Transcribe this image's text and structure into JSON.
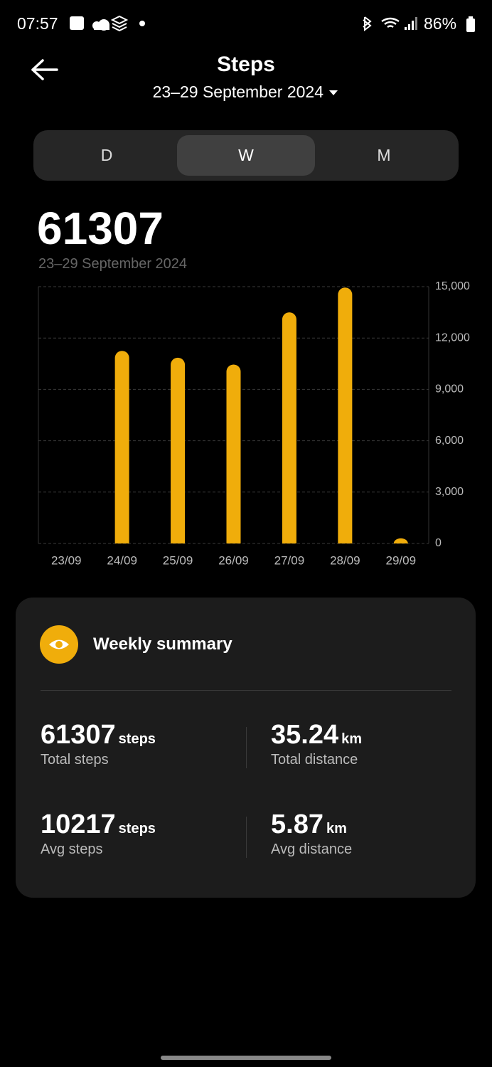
{
  "status_bar": {
    "time": "07:57",
    "battery": "86%"
  },
  "header": {
    "title": "Steps",
    "date_range": "23–29 September 2024"
  },
  "tabs": [
    "D",
    "W",
    "M"
  ],
  "total": {
    "value": "61307",
    "date_range": "23–29 September 2024"
  },
  "chart_data": {
    "type": "bar",
    "categories": [
      "23/09",
      "24/09",
      "25/09",
      "26/09",
      "27/09",
      "28/09",
      "29/09"
    ],
    "values": [
      0,
      11250,
      10850,
      10450,
      13500,
      14950,
      300
    ],
    "color": "#f0ad0b",
    "ylim": [
      0,
      15000
    ],
    "yticks": [
      0,
      {
        "value": 3000,
        "label": "3,000"
      },
      {
        "value": 6000,
        "label": "6,000"
      },
      {
        "value": 9000,
        "label": "9,000"
      },
      {
        "value": 12000,
        "label": "12,000"
      },
      {
        "value": 15000,
        "label": "15,000"
      }
    ],
    "grid": true
  },
  "summary": {
    "title": "Weekly summary",
    "stats": [
      {
        "value": "61307",
        "unit": "steps",
        "label": "Total steps"
      },
      {
        "value": "35.24",
        "unit": "km",
        "label": "Total distance"
      },
      {
        "value": "10217",
        "unit": "steps",
        "label": "Avg steps"
      },
      {
        "value": "5.87",
        "unit": "km",
        "label": "Avg distance"
      }
    ]
  }
}
